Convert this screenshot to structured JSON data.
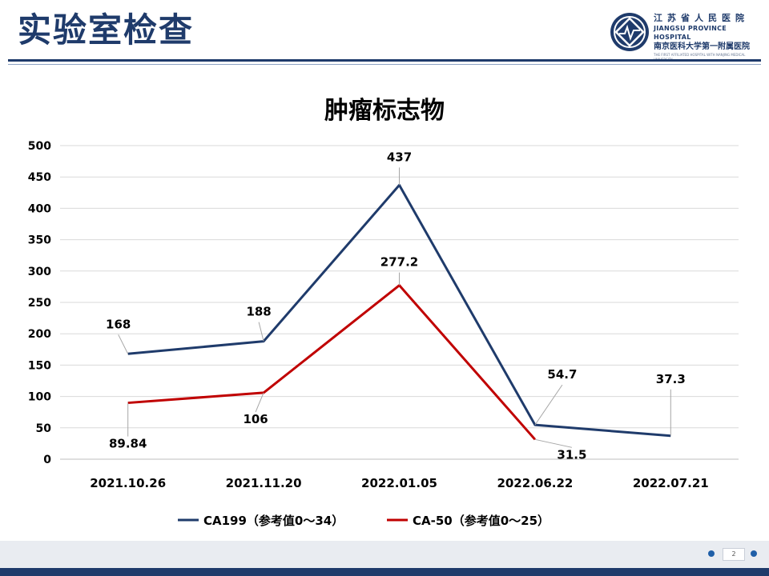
{
  "slide": {
    "title": "实验室检查",
    "page_number": "2"
  },
  "logo": {
    "line1": "江苏省人民医院",
    "line2": "JIANGSU PROVINCE HOSPITAL",
    "line3": "南京医科大学第一附属医院",
    "line4": "THE FIRST AFFILIATED HOSPITAL WITH NANJING MEDICAL UNIVERSITY"
  },
  "colors": {
    "brand": "#1f3b6b",
    "ca199": "#1f3b6b",
    "ca50": "#c00000"
  },
  "chart_data": {
    "type": "line",
    "title": "肿瘤标志物",
    "categories": [
      "2021.10.26",
      "2021.11.20",
      "2022.01.05",
      "2022.06.22",
      "2022.07.21"
    ],
    "ylim": [
      0,
      500
    ],
    "yticks": [
      0,
      50,
      100,
      150,
      200,
      250,
      300,
      350,
      400,
      450,
      500
    ],
    "grid": true,
    "legend": "bottom",
    "series": [
      {
        "name": "CA199（参考值0～34）",
        "values": [
          168,
          188,
          437,
          54.7,
          37.3
        ],
        "labels": [
          "168",
          "188",
          "437",
          "54.7",
          "37.3"
        ]
      },
      {
        "name": "CA-50（参考值0～25）",
        "values": [
          89.84,
          106,
          277.2,
          31.5,
          null
        ],
        "labels": [
          "89.84",
          "106",
          "277.2",
          "31.5",
          null
        ]
      }
    ]
  }
}
